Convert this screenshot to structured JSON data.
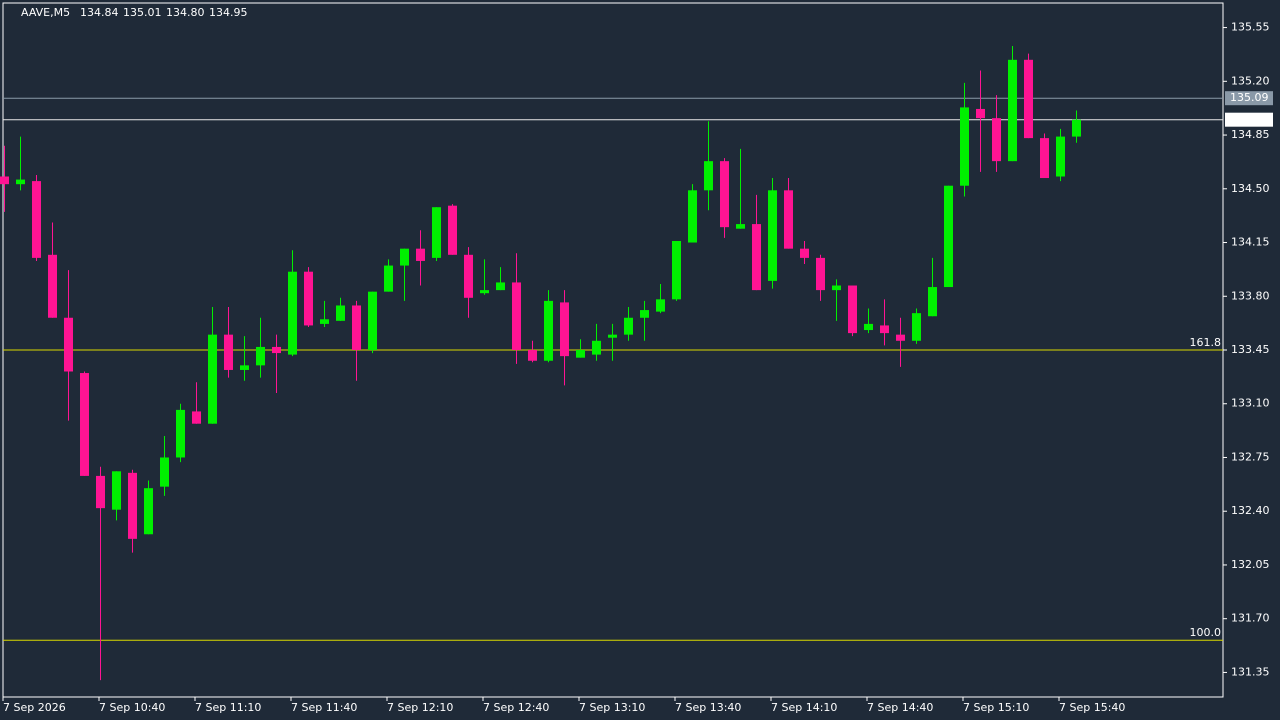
{
  "chart_data": {
    "type": "candlestick",
    "header": {
      "symbol": "AAVE,M5",
      "ohlc": [
        "134.84",
        "135.01",
        "134.80",
        "134.95"
      ]
    },
    "categories": [
      "7 Sep 2026",
      null,
      null,
      null,
      null,
      null,
      "7 Sep 10:40",
      null,
      null,
      null,
      null,
      null,
      "7 Sep 11:10",
      null,
      null,
      null,
      null,
      null,
      "7 Sep 11:40",
      null,
      null,
      null,
      null,
      null,
      "7 Sep 12:10",
      null,
      null,
      null,
      null,
      null,
      "7 Sep 12:40",
      null,
      null,
      null,
      null,
      null,
      "7 Sep 13:10",
      null,
      null,
      null,
      null,
      null,
      "7 Sep 13:40",
      null,
      null,
      null,
      null,
      null,
      "7 Sep 14:10",
      null,
      null,
      null,
      null,
      null,
      "7 Sep 14:40",
      null,
      null,
      null,
      null,
      null,
      "7 Sep 15:10",
      null,
      null,
      null,
      null,
      null,
      "7 Sep 15:40",
      null
    ],
    "open": [
      134.58,
      134.53,
      134.55,
      134.07,
      133.66,
      133.3,
      132.63,
      132.41,
      132.65,
      132.25,
      132.56,
      132.75,
      133.05,
      132.97,
      133.55,
      133.32,
      133.35,
      133.47,
      133.42,
      133.96,
      133.62,
      133.64,
      133.74,
      133.45,
      133.83,
      134.0,
      134.11,
      134.05,
      134.39,
      134.07,
      133.82,
      133.84,
      133.89,
      133.45,
      133.38,
      133.76,
      133.4,
      133.42,
      133.53,
      133.55,
      133.66,
      133.7,
      133.78,
      134.15,
      134.49,
      134.68,
      134.24,
      134.27,
      133.9,
      134.49,
      134.11,
      134.05,
      133.84,
      133.87,
      133.58,
      133.61,
      133.55,
      133.51,
      133.67,
      133.86,
      134.52,
      135.02,
      134.96,
      134.68,
      135.34,
      134.83,
      134.58,
      134.84
    ],
    "high": [
      134.78,
      134.84,
      134.59,
      134.28,
      133.97,
      133.31,
      132.69,
      132.66,
      132.67,
      132.6,
      132.89,
      133.1,
      133.24,
      133.73,
      133.73,
      133.54,
      133.66,
      133.55,
      134.1,
      133.99,
      133.77,
      133.79,
      133.77,
      133.83,
      134.04,
      134.11,
      134.23,
      134.38,
      134.4,
      134.12,
      134.04,
      133.99,
      134.08,
      133.51,
      133.84,
      133.84,
      133.52,
      133.62,
      133.62,
      133.73,
      133.77,
      133.88,
      134.16,
      134.53,
      134.94,
      134.7,
      134.76,
      134.46,
      134.57,
      134.57,
      134.16,
      134.07,
      133.91,
      133.87,
      133.72,
      133.78,
      133.66,
      133.72,
      134.05,
      134.52,
      135.19,
      135.27,
      135.11,
      135.43,
      135.38,
      134.86,
      134.89,
      135.01
    ],
    "low": [
      134.35,
      134.49,
      134.03,
      133.66,
      132.99,
      132.63,
      131.3,
      132.34,
      132.13,
      132.25,
      132.5,
      132.72,
      132.97,
      132.97,
      133.27,
      133.25,
      133.27,
      133.17,
      133.41,
      133.6,
      133.6,
      133.64,
      133.25,
      133.43,
      133.83,
      133.77,
      133.87,
      134.03,
      134.07,
      133.66,
      133.81,
      133.84,
      133.36,
      133.37,
      133.37,
      133.22,
      133.4,
      133.38,
      133.38,
      133.51,
      133.51,
      133.69,
      133.77,
      134.15,
      134.36,
      134.18,
      134.24,
      133.84,
      133.85,
      134.11,
      134.01,
      133.77,
      133.64,
      133.54,
      133.56,
      133.48,
      133.34,
      133.49,
      133.67,
      133.86,
      134.45,
      134.61,
      134.61,
      134.68,
      134.83,
      134.57,
      134.55,
      134.8
    ],
    "close": [
      134.53,
      134.56,
      134.05,
      133.66,
      133.31,
      132.63,
      132.42,
      132.66,
      132.22,
      132.55,
      132.75,
      133.06,
      132.97,
      133.55,
      133.32,
      133.35,
      133.47,
      133.43,
      133.96,
      133.61,
      133.65,
      133.74,
      133.45,
      133.83,
      134.0,
      134.11,
      134.03,
      134.38,
      134.07,
      133.79,
      133.84,
      133.89,
      133.45,
      133.38,
      133.77,
      133.41,
      133.45,
      133.51,
      133.55,
      133.66,
      133.71,
      133.78,
      134.16,
      134.49,
      134.68,
      134.25,
      134.27,
      133.84,
      134.49,
      134.11,
      134.05,
      133.84,
      133.87,
      133.56,
      133.62,
      133.56,
      133.51,
      133.69,
      133.86,
      134.52,
      135.03,
      134.96,
      134.68,
      135.34,
      134.83,
      134.57,
      134.84,
      134.95
    ],
    "bull_color": "#00f000",
    "bear_color": "#ff1493",
    "ylim": [
      131.19,
      135.71
    ],
    "yticks": [
      135.55,
      {
        "value": 135.2,
        "label": "135.20"
      },
      134.85,
      {
        "value": 134.5,
        "label": "134.50"
      },
      134.15,
      {
        "value": 133.8,
        "label": "133.80"
      },
      133.45,
      {
        "value": 133.1,
        "label": "133.10"
      },
      132.75,
      {
        "value": 132.4,
        "label": "132.40"
      },
      132.05,
      {
        "value": 131.7,
        "label": "131.70"
      },
      131.35
    ],
    "ask_line": 135.09,
    "bid_line": 134.95,
    "fib_levels": [
      {
        "price": 133.45,
        "label": "161.8"
      },
      {
        "price": 131.56,
        "label": "100.0"
      }
    ],
    "fib_color": "#d8d800",
    "grid": false
  }
}
